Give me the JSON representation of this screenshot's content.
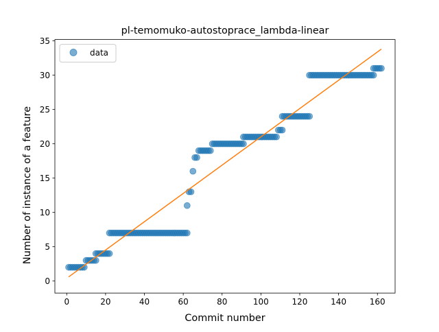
{
  "chart_data": {
    "type": "scatter",
    "title": "pl-temomuko-autostoprace_lambda-linear",
    "xlabel": "Commit number",
    "ylabel": "Number of instance of a feature",
    "xlim": [
      -6.1,
      169.1
    ],
    "ylim": [
      -1.75,
      35.2
    ],
    "xticks": [
      0,
      20,
      40,
      60,
      80,
      100,
      120,
      140,
      160
    ],
    "yticks": [
      0,
      5,
      10,
      15,
      20,
      25,
      30,
      35
    ],
    "grid": false,
    "legend": {
      "placement": "top-left",
      "entries": [
        "data"
      ]
    },
    "series": [
      {
        "name": "data",
        "kind": "scatter",
        "color": "#1f77b4",
        "segments": [
          {
            "from": 1,
            "to": 9,
            "y": 2
          },
          {
            "from": 10,
            "to": 15,
            "y": 3
          },
          {
            "from": 15,
            "to": 22,
            "y": 4
          },
          {
            "from": 22,
            "to": 62,
            "y": 7
          },
          {
            "from": 62,
            "to": 62,
            "y": 11
          },
          {
            "from": 63,
            "to": 64,
            "y": 13
          },
          {
            "from": 65,
            "to": 65,
            "y": 16
          },
          {
            "from": 66,
            "to": 67,
            "y": 18
          },
          {
            "from": 68,
            "to": 74,
            "y": 19
          },
          {
            "from": 75,
            "to": 91,
            "y": 20
          },
          {
            "from": 91,
            "to": 108,
            "y": 21
          },
          {
            "from": 109,
            "to": 111,
            "y": 22
          },
          {
            "from": 111,
            "to": 125,
            "y": 24
          },
          {
            "from": 125,
            "to": 158,
            "y": 30
          },
          {
            "from": 158,
            "to": 162,
            "y": 31
          }
        ]
      },
      {
        "name": "",
        "kind": "line",
        "color": "#ff7f0e",
        "x": [
          1,
          162
        ],
        "y": [
          0.6,
          33.8
        ]
      }
    ]
  }
}
